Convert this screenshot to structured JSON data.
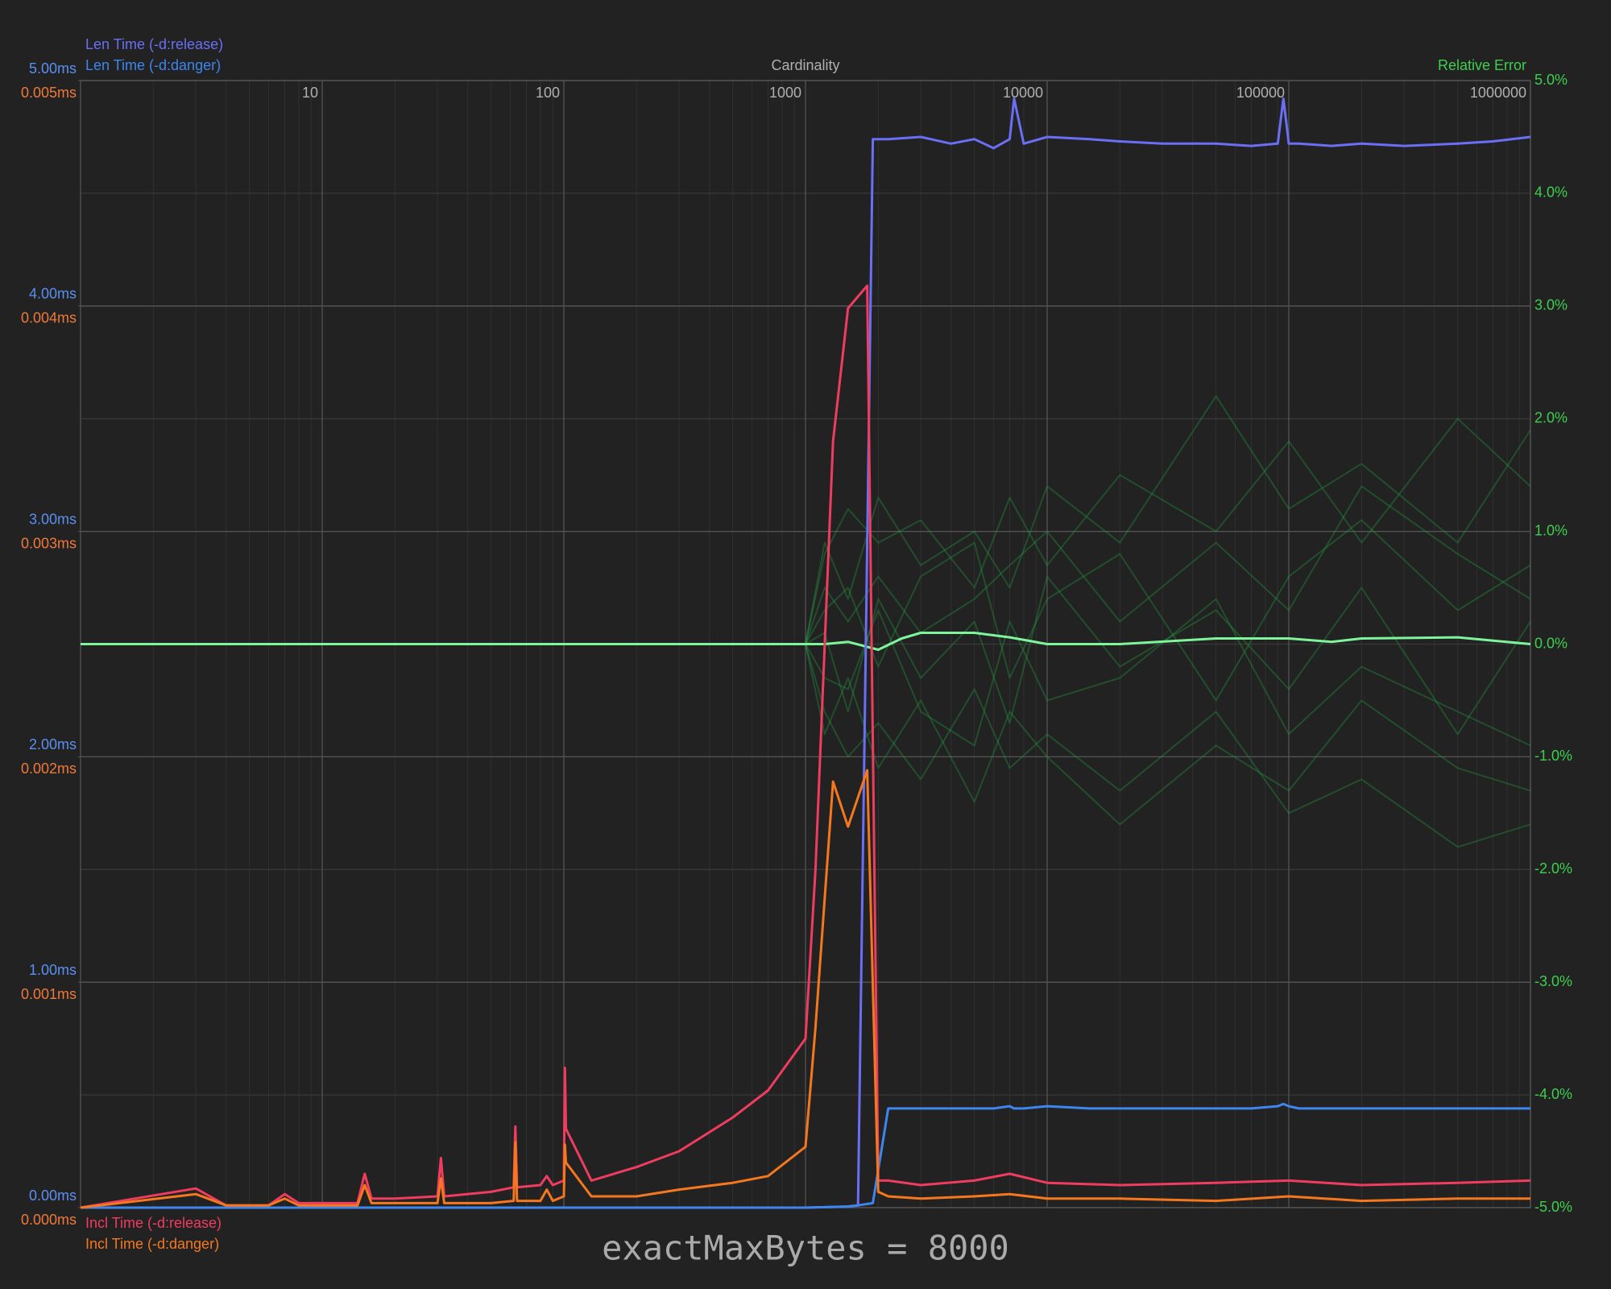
{
  "chart_data": {
    "type": "line",
    "xlabel": "Cardinality",
    "y3label": "Relative Error",
    "caption": "exactMaxBytes = 8000",
    "xscale": "log",
    "grid": true,
    "minor_grid": true,
    "xlim": [
      1,
      1000000
    ],
    "xticks": [
      10,
      100,
      1000,
      10000,
      100000,
      1000000
    ],
    "ylim": [
      0,
      5
    ],
    "yticks": [
      {
        "value": 0,
        "label": "0.00ms"
      },
      {
        "value": 1,
        "label": "1.00ms"
      },
      {
        "value": 2,
        "label": "2.00ms"
      },
      {
        "value": 3,
        "label": "3.00ms"
      },
      {
        "value": 4,
        "label": "4.00ms"
      },
      {
        "value": 5,
        "label": "5.00ms"
      }
    ],
    "y2lim": [
      0,
      0.005
    ],
    "y2ticks": [
      {
        "value": 0,
        "label": "0.000ms"
      },
      {
        "value": 0.001,
        "label": "0.001ms"
      },
      {
        "value": 0.002,
        "label": "0.002ms"
      },
      {
        "value": 0.003,
        "label": "0.003ms"
      },
      {
        "value": 0.004,
        "label": "0.004ms"
      },
      {
        "value": 0.005,
        "label": "0.005ms"
      }
    ],
    "y3lim": [
      -5,
      5
    ],
    "y3ticks": [
      {
        "value": -5,
        "label": "-5.0%"
      },
      {
        "value": -4,
        "label": "-4.0%"
      },
      {
        "value": -3,
        "label": "-3.0%"
      },
      {
        "value": -2,
        "label": "-2.0%"
      },
      {
        "value": -1,
        "label": "-1.0%"
      },
      {
        "value": 0,
        "label": "0.0%"
      },
      {
        "value": 1,
        "label": "1.0%"
      },
      {
        "value": 2,
        "label": "2.0%"
      },
      {
        "value": 3,
        "label": "3.0%"
      },
      {
        "value": 4,
        "label": "4.0%"
      },
      {
        "value": 5,
        "label": "5.0%"
      }
    ],
    "series": [
      {
        "name": "Len Time (-d:release)",
        "color": "#6a6ff5",
        "axis": "y",
        "x": [
          1,
          10,
          100,
          1000,
          1500,
          1650,
          1900,
          2200,
          3000,
          4000,
          5000,
          6000,
          7000,
          7300,
          8000,
          10000,
          15000,
          20000,
          30000,
          50000,
          70000,
          90000,
          95000,
          100000,
          110000,
          150000,
          200000,
          300000,
          500000,
          700000,
          1000000
        ],
        "values": [
          0,
          0,
          0,
          0,
          0.005,
          0.01,
          4.74,
          4.74,
          4.75,
          4.72,
          4.74,
          4.7,
          4.74,
          4.92,
          4.72,
          4.75,
          4.74,
          4.73,
          4.72,
          4.72,
          4.71,
          4.72,
          4.92,
          4.72,
          4.72,
          4.71,
          4.72,
          4.71,
          4.72,
          4.73,
          4.75
        ]
      },
      {
        "name": "Len Time (-d:danger)",
        "color": "#3d86f0",
        "axis": "y",
        "x": [
          1,
          10,
          100,
          1000,
          1500,
          1650,
          1900,
          2200,
          3000,
          4000,
          5000,
          6000,
          7000,
          7300,
          8000,
          10000,
          15000,
          20000,
          30000,
          50000,
          70000,
          90000,
          95000,
          100000,
          110000,
          150000,
          200000,
          300000,
          500000,
          700000,
          1000000
        ],
        "values": [
          0,
          0,
          0,
          0,
          0.005,
          0.01,
          0.02,
          0.44,
          0.44,
          0.44,
          0.44,
          0.44,
          0.45,
          0.44,
          0.44,
          0.45,
          0.44,
          0.44,
          0.44,
          0.44,
          0.44,
          0.45,
          0.46,
          0.45,
          0.44,
          0.44,
          0.44,
          0.44,
          0.44,
          0.44,
          0.44
        ]
      },
      {
        "name": "Incl Time (-d:release)",
        "color": "#f03c5f",
        "axis": "y2",
        "x": [
          1,
          3,
          4,
          6,
          7,
          8,
          10,
          14,
          15,
          16,
          20,
          30,
          31,
          32,
          50,
          62,
          63,
          64,
          80,
          85,
          90,
          100,
          101,
          102,
          130,
          200,
          300,
          500,
          700,
          1000,
          1100,
          1300,
          1500,
          1800,
          2000,
          2200,
          3000,
          5000,
          7000,
          10000,
          20000,
          50000,
          100000,
          200000,
          500000,
          1000000
        ],
        "values": [
          0,
          8.5e-05,
          1e-05,
          1e-05,
          6e-05,
          2e-05,
          2e-05,
          2e-05,
          0.00015,
          4e-05,
          4e-05,
          5e-05,
          0.00022,
          5e-05,
          7e-05,
          9e-05,
          0.00036,
          9e-05,
          0.0001,
          0.00014,
          0.0001,
          0.00012,
          0.00062,
          0.00035,
          0.00012,
          0.00018,
          0.00025,
          0.0004,
          0.00052,
          0.00075,
          0.0015,
          0.0034,
          0.00399,
          0.00409,
          0.00012,
          0.00012,
          0.0001,
          0.00012,
          0.00015,
          0.00011,
          0.0001,
          0.00011,
          0.00012,
          0.0001,
          0.00011,
          0.00012
        ]
      },
      {
        "name": "Incl Time (-d:danger)",
        "color": "#f5781e",
        "axis": "y2",
        "x": [
          1,
          3,
          4,
          6,
          7,
          8,
          10,
          14,
          15,
          16,
          20,
          30,
          31,
          32,
          50,
          62,
          63,
          64,
          80,
          85,
          90,
          100,
          101,
          102,
          130,
          200,
          300,
          500,
          700,
          1000,
          1100,
          1300,
          1500,
          1800,
          2000,
          2200,
          3000,
          5000,
          7000,
          10000,
          20000,
          50000,
          100000,
          200000,
          500000,
          1000000
        ],
        "values": [
          0,
          6e-05,
          1e-05,
          1e-05,
          4e-05,
          1e-05,
          1e-05,
          1e-05,
          0.0001,
          2e-05,
          2e-05,
          2e-05,
          0.00013,
          2e-05,
          2e-05,
          3e-05,
          0.00029,
          3e-05,
          3e-05,
          8e-05,
          3e-05,
          5e-05,
          0.00028,
          0.0002,
          5e-05,
          5e-05,
          8e-05,
          0.00011,
          0.00014,
          0.00027,
          0.0008,
          0.00189,
          0.00169,
          0.00194,
          7e-05,
          5e-05,
          4e-05,
          5e-05,
          6e-05,
          4e-05,
          4e-05,
          3e-05,
          5e-05,
          3e-05,
          4e-05,
          4e-05
        ]
      },
      {
        "color": "#22a043",
        "axis": "y3",
        "x": [
          1000,
          1200,
          1500,
          2000,
          3000,
          5000,
          7000,
          10000,
          20000,
          50000,
          100000,
          200000,
          500000,
          1000000
        ],
        "values": [
          0,
          0.8,
          1.2,
          0.9,
          1.1,
          0.5,
          1.3,
          0.7,
          1.5,
          1.0,
          1.8,
          0.9,
          2.0,
          1.4
        ]
      },
      {
        "color": "#22a043",
        "axis": "y3",
        "x": [
          1000,
          1200,
          1500,
          2000,
          3000,
          5000,
          7000,
          10000,
          20000,
          50000,
          100000,
          200000,
          500000,
          1000000
        ],
        "values": [
          0,
          -0.6,
          -1.0,
          -0.7,
          -1.2,
          -0.4,
          -1.1,
          -0.8,
          -1.3,
          -0.6,
          -1.5,
          -1.2,
          -1.8,
          -1.6
        ]
      },
      {
        "color": "#22a043",
        "axis": "y3",
        "x": [
          1000,
          1200,
          1500,
          2000,
          3000,
          5000,
          7000,
          10000,
          20000,
          50000,
          100000,
          200000,
          500000,
          1000000
        ],
        "values": [
          0,
          0.3,
          0.5,
          -0.2,
          0.6,
          0.9,
          -0.3,
          0.4,
          0.8,
          -0.5,
          0.6,
          1.1,
          0.3,
          0.7
        ]
      },
      {
        "color": "#22a043",
        "axis": "y3",
        "x": [
          1000,
          1200,
          1500,
          2000,
          3000,
          5000,
          7000,
          10000,
          20000,
          50000,
          100000,
          200000,
          500000,
          1000000
        ],
        "values": [
          0,
          -0.3,
          -0.4,
          0.3,
          -0.6,
          -0.9,
          0.2,
          -0.5,
          -0.3,
          0.4,
          -0.8,
          -0.2,
          -0.6,
          -0.9
        ]
      },
      {
        "color": "#22a043",
        "axis": "y3",
        "x": [
          1000,
          1200,
          1500,
          2000,
          3000,
          5000,
          7000,
          10000,
          20000,
          50000,
          100000,
          200000,
          500000,
          1000000
        ],
        "values": [
          0,
          0.5,
          0.2,
          0.6,
          0.1,
          0.4,
          0.7,
          1.0,
          0.2,
          0.9,
          0.3,
          1.4,
          0.8,
          0.4
        ]
      },
      {
        "color": "#22a043",
        "axis": "y3",
        "x": [
          1000,
          1200,
          1500,
          2000,
          3000,
          5000,
          7000,
          10000,
          20000,
          50000,
          100000,
          200000,
          500000,
          1000000
        ],
        "values": [
          0,
          -0.8,
          -0.3,
          -1.1,
          -0.5,
          -1.4,
          -0.6,
          -1.0,
          -1.6,
          -0.9,
          -1.3,
          -0.5,
          -1.1,
          -1.3
        ]
      },
      {
        "color": "#22a043",
        "axis": "y3",
        "x": [
          1000,
          1200,
          1500,
          2000,
          3000,
          5000,
          7000,
          10000,
          20000,
          50000,
          100000,
          200000,
          500000,
          1000000
        ],
        "values": [
          0,
          0.1,
          -0.6,
          0.4,
          -0.3,
          0.2,
          -0.7,
          0.6,
          -0.2,
          0.3,
          -0.4,
          0.5,
          -0.8,
          0.2
        ]
      },
      {
        "color": "#22a043",
        "axis": "y3",
        "x": [
          1000,
          1200,
          1500,
          2000,
          3000,
          5000,
          7000,
          10000,
          20000,
          50000,
          100000,
          200000,
          500000,
          1000000
        ],
        "values": [
          0,
          0.9,
          0.4,
          1.3,
          0.7,
          1.0,
          0.5,
          1.4,
          0.9,
          2.2,
          1.2,
          1.6,
          0.9,
          1.9
        ]
      },
      {
        "color": "#7ef59b",
        "axis": "y3",
        "x": [
          1,
          1000,
          1200,
          1500,
          2000,
          2500,
          3000,
          5000,
          7000,
          10000,
          20000,
          50000,
          100000,
          150000,
          200000,
          500000,
          1000000
        ],
        "values": [
          0,
          0,
          0,
          0.02,
          -0.05,
          0.05,
          0.1,
          0.1,
          0.06,
          0,
          0,
          0.05,
          0.05,
          0.02,
          0.05,
          0.06,
          0
        ]
      }
    ]
  }
}
